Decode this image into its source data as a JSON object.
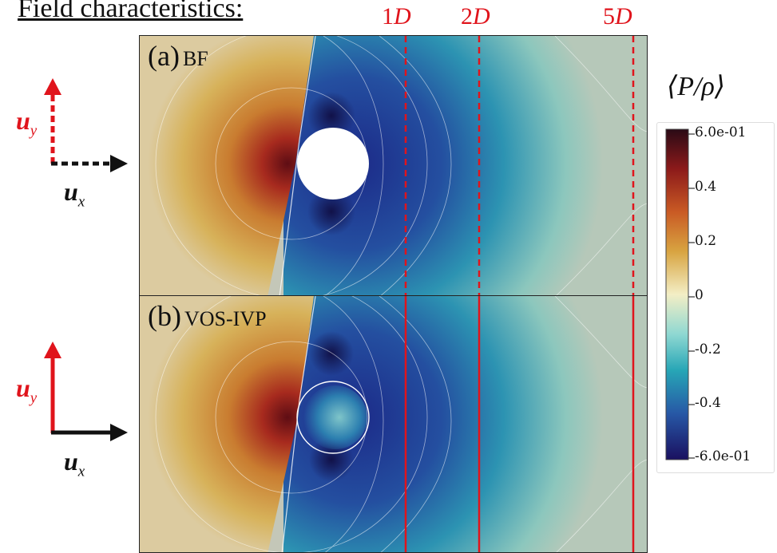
{
  "heading": "Field characteristics:",
  "markers": [
    {
      "coef": "1",
      "var": "D",
      "id": "1d"
    },
    {
      "coef": "2",
      "var": "D",
      "id": "2d"
    },
    {
      "coef": "5",
      "var": "D",
      "id": "5d"
    }
  ],
  "panels": {
    "a": {
      "tag": "(a)",
      "name": "BF",
      "line_style": "dashed"
    },
    "b": {
      "tag": "(b)",
      "name": "VOS-IVP",
      "line_style": "solid"
    }
  },
  "colorbar": {
    "title": "⟨P/ρ⟩",
    "ticks": [
      "6.0e-01",
      "0.4",
      "0.2",
      "0",
      "-0.2",
      "-0.4",
      "-6.0e-01"
    ],
    "colors": [
      "#2a0a16",
      "#8c1a1a",
      "#c95a24",
      "#d8a441",
      "#f3eec5",
      "#8fd8d2",
      "#27a6b6",
      "#2758a6",
      "#1a1060"
    ]
  },
  "vectors": {
    "a": {
      "x_sym": "u",
      "x_sub": "x",
      "y_sym": "u",
      "y_sub": "y",
      "x_color": "#111111",
      "y_color": "#e0141c",
      "style": "dotted"
    },
    "b": {
      "x_sym": "u",
      "x_sub": "x",
      "y_sym": "u",
      "y_sub": "y",
      "x_color": "#111111",
      "y_color": "#e0141c",
      "style": "solid"
    }
  },
  "colors": {
    "accent_red": "#e0141c",
    "contour_white": "#ffffff"
  }
}
